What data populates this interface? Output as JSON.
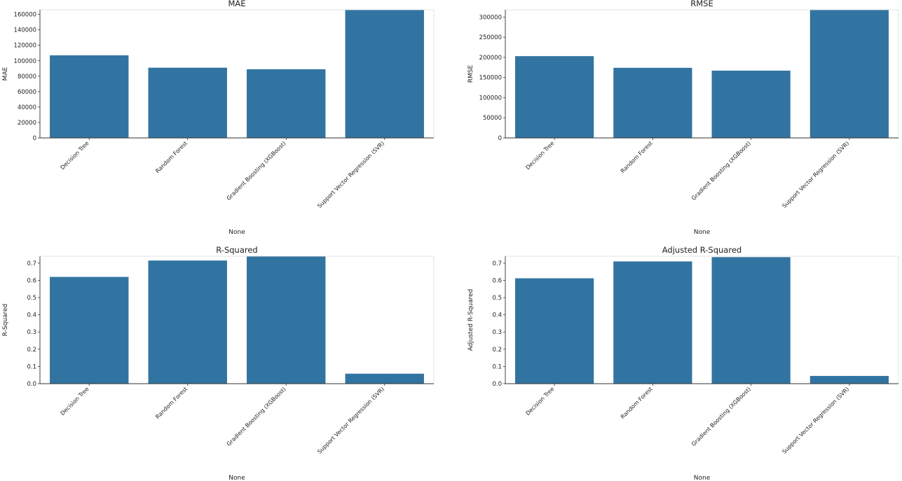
{
  "colors": {
    "bar": "#3274a1",
    "axis": "#333333",
    "background": "#ffffff"
  },
  "chart_data": [
    {
      "type": "bar",
      "title": "MAE",
      "xlabel": "None",
      "ylabel": "MAE",
      "categories": [
        "Decision Tree",
        "Random Forest",
        "Gradient Boosting (XGBoost)",
        "Support Vector Regression (SVR)"
      ],
      "values": [
        107000,
        91000,
        89000,
        166000
      ],
      "ylim": [
        0,
        166000
      ],
      "yticks": [
        0,
        20000,
        40000,
        60000,
        80000,
        100000,
        120000,
        140000,
        160000
      ],
      "yticklabels": [
        "0",
        "20000",
        "40000",
        "60000",
        "80000",
        "100000",
        "120000",
        "140000",
        "160000"
      ]
    },
    {
      "type": "bar",
      "title": "RMSE",
      "xlabel": "None",
      "ylabel": "RMSE",
      "categories": [
        "Decision Tree",
        "Random Forest",
        "Gradient Boosting (XGBoost)",
        "Support Vector Regression (SVR)"
      ],
      "values": [
        203000,
        174000,
        167000,
        318000
      ],
      "ylim": [
        0,
        318000
      ],
      "yticks": [
        0,
        50000,
        100000,
        150000,
        200000,
        250000,
        300000
      ],
      "yticklabels": [
        "0",
        "50000",
        "100000",
        "150000",
        "200000",
        "250000",
        "300000"
      ]
    },
    {
      "type": "bar",
      "title": "R-Squared",
      "xlabel": "None",
      "ylabel": "R-Squared",
      "categories": [
        "Decision Tree",
        "Random Forest",
        "Gradient Boosting (XGBoost)",
        "Support Vector Regression (SVR)"
      ],
      "values": [
        0.62,
        0.715,
        0.74,
        0.058
      ],
      "ylim": [
        0,
        0.74
      ],
      "yticks": [
        0.0,
        0.1,
        0.2,
        0.3,
        0.4,
        0.5,
        0.6,
        0.7
      ],
      "yticklabels": [
        "0.0",
        "0.1",
        "0.2",
        "0.3",
        "0.4",
        "0.5",
        "0.6",
        "0.7"
      ]
    },
    {
      "type": "bar",
      "title": "Adjusted R-Squared",
      "xlabel": "None",
      "ylabel": "Adjusted R-Squared",
      "categories": [
        "Decision Tree",
        "Random Forest",
        "Gradient Boosting (XGBoost)",
        "Support Vector Regression (SVR)"
      ],
      "values": [
        0.612,
        0.71,
        0.735,
        0.045
      ],
      "ylim": [
        0,
        0.74
      ],
      "yticks": [
        0.0,
        0.1,
        0.2,
        0.3,
        0.4,
        0.5,
        0.6,
        0.7
      ],
      "yticklabels": [
        "0.0",
        "0.1",
        "0.2",
        "0.3",
        "0.4",
        "0.5",
        "0.6",
        "0.7"
      ]
    }
  ]
}
